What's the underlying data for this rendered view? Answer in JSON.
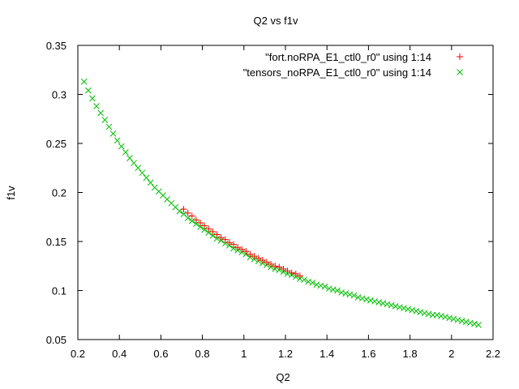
{
  "chart_data": {
    "type": "scatter",
    "title": "Q2 vs f1v",
    "xlabel": "Q2",
    "ylabel": "f1v",
    "xlim": [
      0.2,
      2.2
    ],
    "ylim": [
      0.05,
      0.35
    ],
    "xticks": [
      "0.2",
      "0.4",
      "0.6",
      "0.8",
      "1",
      "1.2",
      "1.4",
      "1.6",
      "1.8",
      "2",
      "2.2"
    ],
    "yticks": [
      "0.05",
      "0.1",
      "0.15",
      "0.2",
      "0.25",
      "0.3",
      "0.35"
    ],
    "grid": false,
    "legend_position": "top-right",
    "series": [
      {
        "name": "\"fort.noRPA_E1_ctl0_r0\" using 1:14",
        "marker": "plus",
        "color": "#ff0000",
        "points": [
          [
            0.71,
            0.183
          ],
          [
            0.73,
            0.179
          ],
          [
            0.75,
            0.176
          ],
          [
            0.77,
            0.172
          ],
          [
            0.79,
            0.169
          ],
          [
            0.81,
            0.166
          ],
          [
            0.83,
            0.163
          ],
          [
            0.85,
            0.16
          ],
          [
            0.87,
            0.157
          ],
          [
            0.89,
            0.154
          ],
          [
            0.91,
            0.152
          ],
          [
            0.93,
            0.149
          ],
          [
            0.95,
            0.147
          ],
          [
            0.97,
            0.144
          ],
          [
            0.99,
            0.142
          ],
          [
            1.01,
            0.14
          ],
          [
            1.03,
            0.137
          ],
          [
            1.05,
            0.135
          ],
          [
            1.07,
            0.133
          ],
          [
            1.09,
            0.131
          ],
          [
            1.11,
            0.129
          ],
          [
            1.13,
            0.127
          ],
          [
            1.15,
            0.125
          ],
          [
            1.17,
            0.124
          ],
          [
            1.19,
            0.122
          ],
          [
            1.21,
            0.12
          ],
          [
            1.23,
            0.118
          ],
          [
            1.25,
            0.117
          ],
          [
            1.27,
            0.115
          ]
        ]
      },
      {
        "name": "\"tensors_noRPA_E1_ctl0_r0\" using 1:14",
        "marker": "cross",
        "color": "#00c000",
        "points": [
          [
            0.23,
            0.313
          ],
          [
            0.25,
            0.304
          ],
          [
            0.27,
            0.296
          ],
          [
            0.29,
            0.288
          ],
          [
            0.31,
            0.281
          ],
          [
            0.33,
            0.274
          ],
          [
            0.35,
            0.267
          ],
          [
            0.37,
            0.26
          ],
          [
            0.39,
            0.253
          ],
          [
            0.41,
            0.247
          ],
          [
            0.43,
            0.241
          ],
          [
            0.45,
            0.235
          ],
          [
            0.47,
            0.23
          ],
          [
            0.49,
            0.225
          ],
          [
            0.51,
            0.22
          ],
          [
            0.53,
            0.215
          ],
          [
            0.55,
            0.21
          ],
          [
            0.57,
            0.205
          ],
          [
            0.59,
            0.201
          ],
          [
            0.61,
            0.197
          ],
          [
            0.63,
            0.193
          ],
          [
            0.65,
            0.189
          ],
          [
            0.67,
            0.185
          ],
          [
            0.69,
            0.181
          ],
          [
            0.71,
            0.178
          ],
          [
            0.73,
            0.174
          ],
          [
            0.75,
            0.171
          ],
          [
            0.77,
            0.168
          ],
          [
            0.79,
            0.165
          ],
          [
            0.81,
            0.162
          ],
          [
            0.83,
            0.159
          ],
          [
            0.85,
            0.156
          ],
          [
            0.87,
            0.153
          ],
          [
            0.89,
            0.151
          ],
          [
            0.91,
            0.148
          ],
          [
            0.93,
            0.146
          ],
          [
            0.95,
            0.143
          ],
          [
            0.97,
            0.141
          ],
          [
            0.99,
            0.139
          ],
          [
            1.01,
            0.137
          ],
          [
            1.03,
            0.134
          ],
          [
            1.05,
            0.132
          ],
          [
            1.07,
            0.13
          ],
          [
            1.09,
            0.128
          ],
          [
            1.11,
            0.126
          ],
          [
            1.13,
            0.124
          ],
          [
            1.15,
            0.122
          ],
          [
            1.17,
            0.121
          ],
          [
            1.19,
            0.119
          ],
          [
            1.21,
            0.117
          ],
          [
            1.23,
            0.116
          ],
          [
            1.25,
            0.114
          ],
          [
            1.27,
            0.112
          ],
          [
            1.29,
            0.111
          ],
          [
            1.31,
            0.109
          ],
          [
            1.33,
            0.108
          ],
          [
            1.35,
            0.106
          ],
          [
            1.37,
            0.105
          ],
          [
            1.39,
            0.104
          ],
          [
            1.41,
            0.102
          ],
          [
            1.43,
            0.101
          ],
          [
            1.45,
            0.1
          ],
          [
            1.47,
            0.098
          ],
          [
            1.49,
            0.097
          ],
          [
            1.51,
            0.096
          ],
          [
            1.53,
            0.095
          ],
          [
            1.55,
            0.093
          ],
          [
            1.57,
            0.092
          ],
          [
            1.59,
            0.091
          ],
          [
            1.61,
            0.09
          ],
          [
            1.63,
            0.089
          ],
          [
            1.65,
            0.088
          ],
          [
            1.67,
            0.087
          ],
          [
            1.69,
            0.086
          ],
          [
            1.71,
            0.085
          ],
          [
            1.73,
            0.084
          ],
          [
            1.75,
            0.083
          ],
          [
            1.77,
            0.082
          ],
          [
            1.79,
            0.081
          ],
          [
            1.81,
            0.08
          ],
          [
            1.83,
            0.079
          ],
          [
            1.85,
            0.078
          ],
          [
            1.87,
            0.077
          ],
          [
            1.89,
            0.076
          ],
          [
            1.91,
            0.075
          ],
          [
            1.93,
            0.075
          ],
          [
            1.95,
            0.074
          ],
          [
            1.97,
            0.073
          ],
          [
            1.99,
            0.072
          ],
          [
            2.01,
            0.071
          ],
          [
            2.03,
            0.07
          ],
          [
            2.05,
            0.069
          ],
          [
            2.07,
            0.068
          ],
          [
            2.09,
            0.067
          ],
          [
            2.11,
            0.066
          ],
          [
            2.13,
            0.065
          ]
        ]
      }
    ]
  }
}
